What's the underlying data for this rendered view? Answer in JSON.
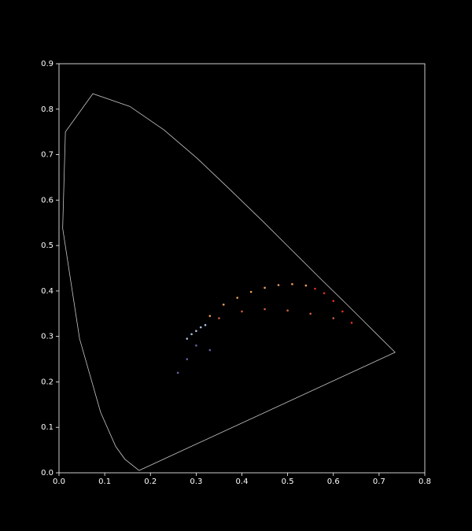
{
  "chart_data": {
    "type": "scatter",
    "xlim": [
      0,
      0.8
    ],
    "ylim": [
      0,
      0.9
    ],
    "xticks": [
      {
        "value": 0,
        "label": "0.0"
      },
      0.1,
      0.2,
      0.3,
      0.4,
      0.5,
      0.6,
      0.7,
      0.8
    ],
    "yticks": [
      {
        "value": 0,
        "label": "0.0"
      },
      0.1,
      0.2,
      0.3,
      0.4,
      0.5,
      0.6,
      0.7,
      0.8,
      0.9
    ],
    "series": [
      {
        "mode": "line",
        "color": "#c8c8c8",
        "x": [
          0.175,
          0.144,
          0.124,
          0.091,
          0.045,
          0.008,
          0.014,
          0.074,
          0.155,
          0.23,
          0.302,
          0.373,
          0.444,
          0.512,
          0.575,
          0.627,
          0.666,
          0.692,
          0.735,
          0.175
        ],
        "values": [
          0.005,
          0.03,
          0.058,
          0.133,
          0.295,
          0.538,
          0.75,
          0.834,
          0.806,
          0.754,
          0.692,
          0.624,
          0.555,
          0.487,
          0.424,
          0.373,
          0.334,
          0.308,
          0.265,
          0.005
        ]
      },
      {
        "mode": "markers",
        "color": "#f0a060",
        "x": [
          0.33,
          0.36,
          0.39,
          0.42,
          0.45,
          0.48,
          0.51,
          0.54
        ],
        "values": [
          0.345,
          0.37,
          0.385,
          0.398,
          0.407,
          0.413,
          0.415,
          0.412
        ]
      },
      {
        "mode": "markers",
        "color": "#e03020",
        "x": [
          0.56,
          0.58,
          0.6,
          0.62,
          0.64
        ],
        "values": [
          0.405,
          0.395,
          0.378,
          0.355,
          0.33
        ]
      },
      {
        "mode": "markers",
        "color": "#d06040",
        "x": [
          0.35,
          0.4,
          0.45,
          0.5,
          0.55,
          0.6
        ],
        "values": [
          0.34,
          0.355,
          0.36,
          0.357,
          0.35,
          0.34
        ]
      },
      {
        "mode": "markers",
        "color": "#a8c0e0",
        "x": [
          0.28,
          0.29,
          0.3,
          0.31,
          0.32
        ],
        "values": [
          0.295,
          0.305,
          0.312,
          0.32,
          0.325
        ]
      },
      {
        "mode": "markers",
        "color": "#7060a0",
        "x": [
          0.3,
          0.28,
          0.26,
          0.33
        ],
        "values": [
          0.28,
          0.25,
          0.22,
          0.27
        ]
      }
    ]
  }
}
